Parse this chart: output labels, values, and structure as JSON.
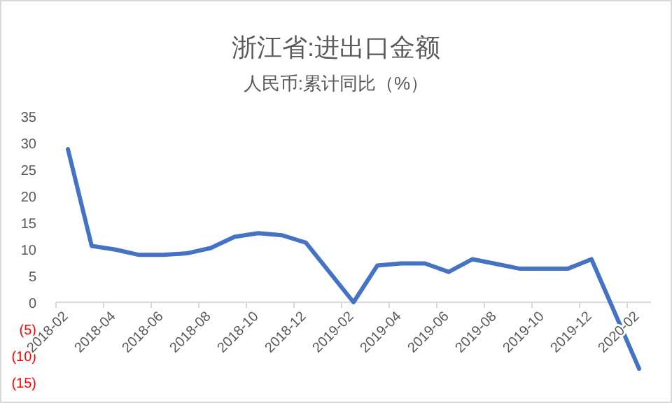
{
  "chart_data": {
    "type": "line",
    "title": "浙江省:进出口金额",
    "subtitle": "人民币:累计同比（%）",
    "categories": [
      "2018-02",
      null,
      "2018-04",
      null,
      "2018-06",
      null,
      "2018-08",
      null,
      "2018-10",
      null,
      "2018-12",
      null,
      "2019-02",
      null,
      "2019-04",
      null,
      "2019-06",
      null,
      "2019-08",
      null,
      "2019-10",
      null,
      "2019-12",
      null,
      "2020-02"
    ],
    "series": [
      {
        "color": "#4472c4",
        "values": [
          28.8,
          10.6,
          9.9,
          8.9,
          8.9,
          9.2,
          10.2,
          12.3,
          13.0,
          12.6,
          11.2,
          5.6,
          0,
          6.9,
          7.3,
          7.3,
          5.7,
          8.1,
          7.2,
          6.3,
          6.3,
          6.3,
          8.1,
          -2.2,
          -12.5
        ]
      }
    ],
    "ylim": [
      -15,
      35
    ],
    "yticks": [
      {
        "value": -15,
        "label": "(15)"
      },
      {
        "value": -10,
        "label": "(10)"
      },
      {
        "value": -5,
        "label": "(5)"
      },
      0,
      5,
      10,
      15,
      20,
      25,
      30,
      35
    ],
    "grid": false,
    "marker": "none",
    "line_style": "solid"
  }
}
